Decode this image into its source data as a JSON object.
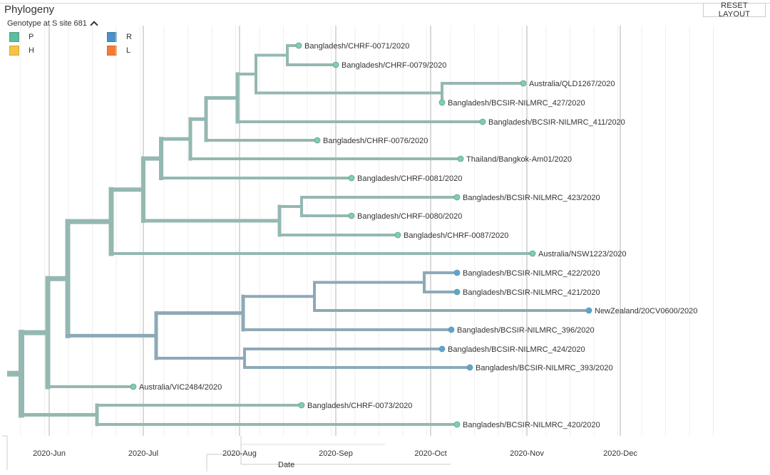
{
  "panel": {
    "title": "Phylogeny",
    "reset_label": "RESET LAYOUT"
  },
  "legend": {
    "title": "Genotype at S site 681",
    "items": [
      {
        "label": "P",
        "color": "#5fbd9f"
      },
      {
        "label": "H",
        "color": "#f5c543"
      },
      {
        "label": "R",
        "color": "#4b92c7"
      },
      {
        "label": "L",
        "color": "#f57c34"
      }
    ]
  },
  "colors": {
    "branch_p": "#94b8b2",
    "branch_r": "#8da9b8",
    "tip_p": "#7ccfb0",
    "tip_r": "#5aa5d6"
  },
  "axis": {
    "label": "Date",
    "ticks": [
      "2020-Jun",
      "2020-Jul",
      "2020-Aug",
      "2020-Sep",
      "2020-Oct",
      "2020-Nov",
      "2020-Dec"
    ]
  },
  "tips": [
    {
      "name": "Bangladesh/CHRF-0071/2020",
      "genotype": "P"
    },
    {
      "name": "Bangladesh/CHRF-0079/2020",
      "genotype": "P"
    },
    {
      "name": "Australia/QLD1267/2020",
      "genotype": "P"
    },
    {
      "name": "Bangladesh/BCSIR-NILMRC_427/2020",
      "genotype": "P"
    },
    {
      "name": "Bangladesh/BCSIR-NILMRC_411/2020",
      "genotype": "P"
    },
    {
      "name": "Bangladesh/CHRF-0076/2020",
      "genotype": "P"
    },
    {
      "name": "Thailand/Bangkok-Am01/2020",
      "genotype": "P"
    },
    {
      "name": "Bangladesh/CHRF-0081/2020",
      "genotype": "P"
    },
    {
      "name": "Bangladesh/BCSIR-NILMRC_423/2020",
      "genotype": "P"
    },
    {
      "name": "Bangladesh/CHRF-0080/2020",
      "genotype": "P"
    },
    {
      "name": "Bangladesh/CHRF-0087/2020",
      "genotype": "P"
    },
    {
      "name": "Australia/NSW1223/2020",
      "genotype": "P"
    },
    {
      "name": "Bangladesh/BCSIR-NILMRC_422/2020",
      "genotype": "R"
    },
    {
      "name": "Bangladesh/BCSIR-NILMRC_421/2020",
      "genotype": "R"
    },
    {
      "name": "NewZealand/20CV0600/2020",
      "genotype": "R"
    },
    {
      "name": "Bangladesh/BCSIR-NILMRC_396/2020",
      "genotype": "R"
    },
    {
      "name": "Bangladesh/BCSIR-NILMRC_424/2020",
      "genotype": "R"
    },
    {
      "name": "Bangladesh/BCSIR-NILMRC_393/2020",
      "genotype": "R"
    },
    {
      "name": "Australia/VIC2484/2020",
      "genotype": "P"
    },
    {
      "name": "Bangladesh/CHRF-0073/2020",
      "genotype": "P"
    },
    {
      "name": "Bangladesh/BCSIR-NILMRC_420/2020",
      "genotype": "P"
    }
  ]
}
